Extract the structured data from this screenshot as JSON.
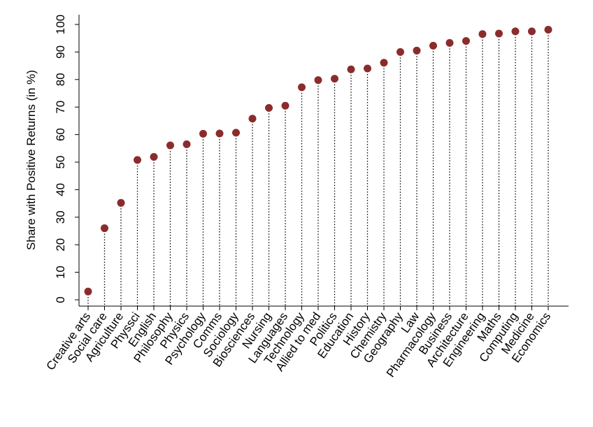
{
  "chart_data": {
    "type": "scatter",
    "ylabel": "Share with Positive Returns (in %)",
    "ylim": [
      0,
      100
    ],
    "yticks": [
      0,
      10,
      20,
      30,
      40,
      50,
      60,
      70,
      80,
      90,
      100
    ],
    "grid": false,
    "marker_color": "#8b2c2c",
    "categories": [
      "Creative arts",
      "Social care",
      "Agriculture",
      "Physsci",
      "English",
      "Philosophy",
      "Physics",
      "Psychology",
      "Comms",
      "Sociology",
      "Biosciences",
      "Nursing",
      "Languages",
      "Technology",
      "Allied to med",
      "Politics",
      "Education",
      "History",
      "Chemistry",
      "Geography",
      "Law",
      "Pharmacology",
      "Business",
      "Architecture",
      "Engineering",
      "Maths",
      "Computing",
      "Medicine",
      "Economics"
    ],
    "values": [
      3,
      26,
      35.2,
      50.8,
      51.9,
      56.1,
      56.5,
      60.3,
      60.4,
      60.7,
      65.8,
      69.7,
      70.5,
      77.2,
      79.8,
      80.3,
      83.7,
      84,
      86.1,
      90,
      90.5,
      92.3,
      93.3,
      94,
      96.5,
      96.7,
      97.5,
      97.5,
      98.1
    ]
  }
}
